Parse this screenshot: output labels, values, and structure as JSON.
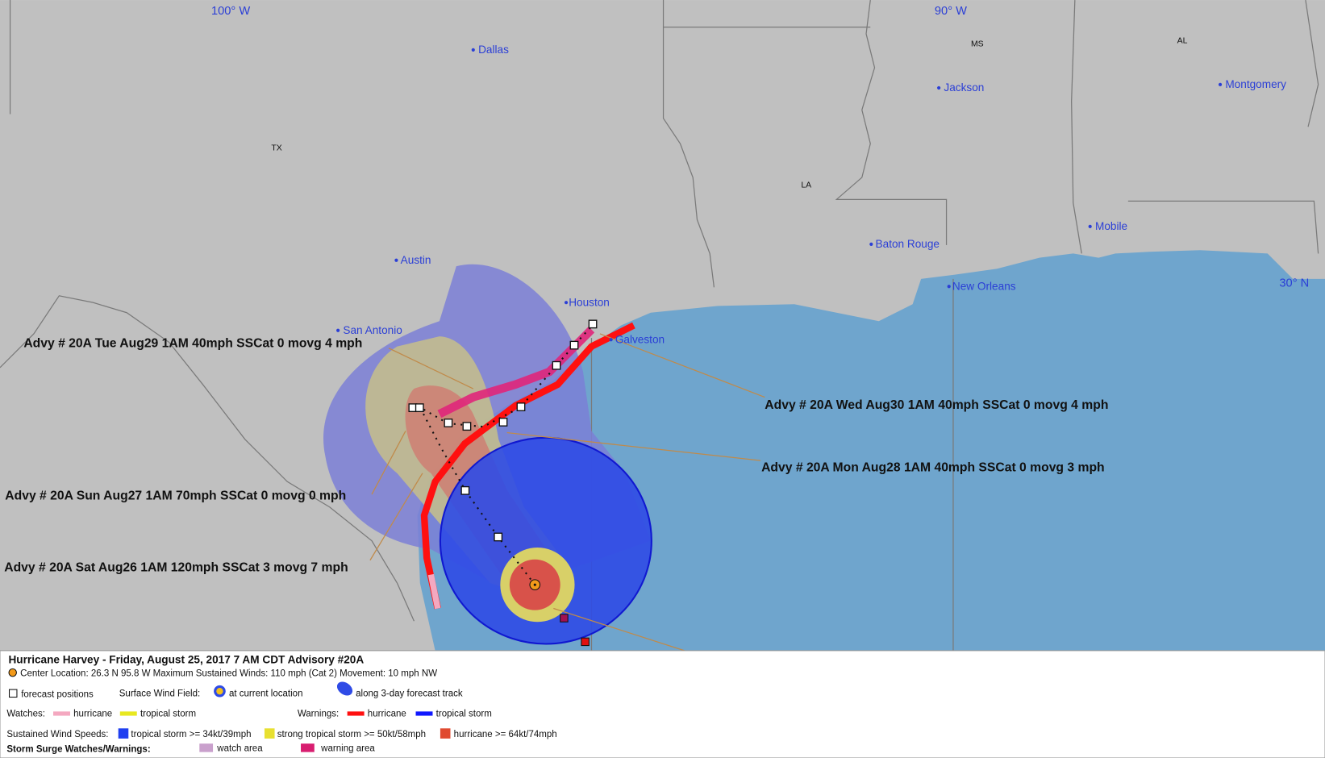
{
  "map": {
    "grid_labels": [
      "100° W",
      "90° W",
      "30° N"
    ],
    "cities": [
      "Dallas",
      "Jackson",
      "Montgomery",
      "Austin",
      "San Antonio",
      "Houston",
      "Galveston",
      "Baton Rouge",
      "New Orleans",
      "Mobile"
    ],
    "states": [
      "TX",
      "MS",
      "AL",
      "LA"
    ]
  },
  "annotations": [
    "Advy # 20A Tue Aug29 1AM  40mph SSCat 0 movg 4 mph",
    "Advy # 20A Wed Aug30 1AM  40mph SSCat 0 movg 4 mph",
    "Advy # 20A Mon Aug28 1AM  40mph SSCat 0 movg 3 mph",
    "Advy # 20A Sun Aug27 1AM  70mph SSCat 0 movg 0 mph",
    "Advy # 20A Sat Aug26 1AM  120mph SSCat 3 movg 7 mph"
  ],
  "legend": {
    "title": "Hurricane Harvey  -  Friday, August 25, 2017  7 AM CDT   Advisory #20A",
    "center": "Center Location: 26.3 N  95.8 W   Maximum Sustained Winds: 110 mph (Cat 2)  Movement: 10 mph NW",
    "forecast_positions": "forecast positions",
    "surface_wind_field": "Surface Wind Field:",
    "at_current_location": "at current location",
    "along_track": "along 3-day forecast track",
    "watches": "Watches:",
    "watch_hurricane": "hurricane",
    "watch_tropical_storm": "tropical storm",
    "warnings": "Warnings:",
    "warning_hurricane": "hurricane",
    "warning_tropical_storm": "tropical storm",
    "sustained_wind_speeds": "Sustained Wind Speeds:",
    "ws_tropical": "tropical storm >= 34kt/39mph",
    "ws_strong": "strong tropical storm >= 50kt/58mph",
    "ws_hurricane": "hurricane >= 64kt/74mph",
    "storm_surge": "Storm Surge Watches/Warnings:",
    "surge_watch": "watch area",
    "surge_warning": "warning area"
  }
}
